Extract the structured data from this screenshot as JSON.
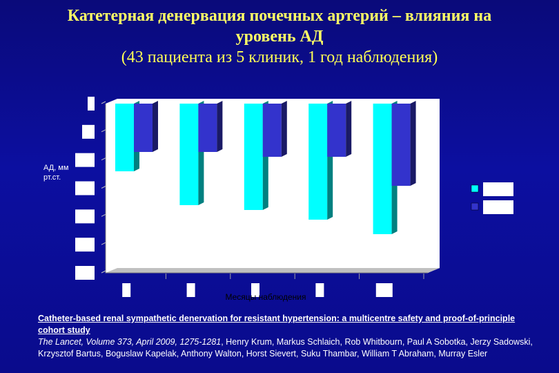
{
  "title": {
    "line1": "Катетерная денервация почечных артерий – влияния на",
    "line2": "уровень АД",
    "line3": "(43 пациента из 5 клиник, 1 год наблюдения)"
  },
  "chart_data": {
    "type": "bar",
    "ylabel": "АД, мм рт.ст.",
    "xlabel": "Месяцы наблюдения",
    "ylim": [
      -35,
      0
    ],
    "categories": [
      "",
      "",
      "",
      "",
      ""
    ],
    "series": [
      {
        "values": [
          -14,
          -21,
          -22,
          -24,
          -27
        ]
      },
      {
        "values": [
          -10,
          -10,
          -11,
          -11,
          -17
        ]
      }
    ],
    "grid": false,
    "legend": "right",
    "colors": {
      "series1": "#00ffff",
      "series1_side": "#008080",
      "series2": "#3333cc",
      "series2_side": "#1a1a66"
    }
  },
  "citation": {
    "title": "Catheter-based renal sympathetic denervation for resistant hypertension: a multicentre safety and proof-of-principle cohort study",
    "journal": "The Lancet, Volume 373,  April 2009, 1275-1281",
    "authors": ", Henry Krum, Markus Schlaich, Rob Whitbourn, Paul A Sobotka, Jerzy Sadowski, Krzysztof Bartus, Boguslaw Kapelak, Anthony Walton, Horst Sievert, Suku Thambar, William T Abraham, Murray Esler"
  }
}
